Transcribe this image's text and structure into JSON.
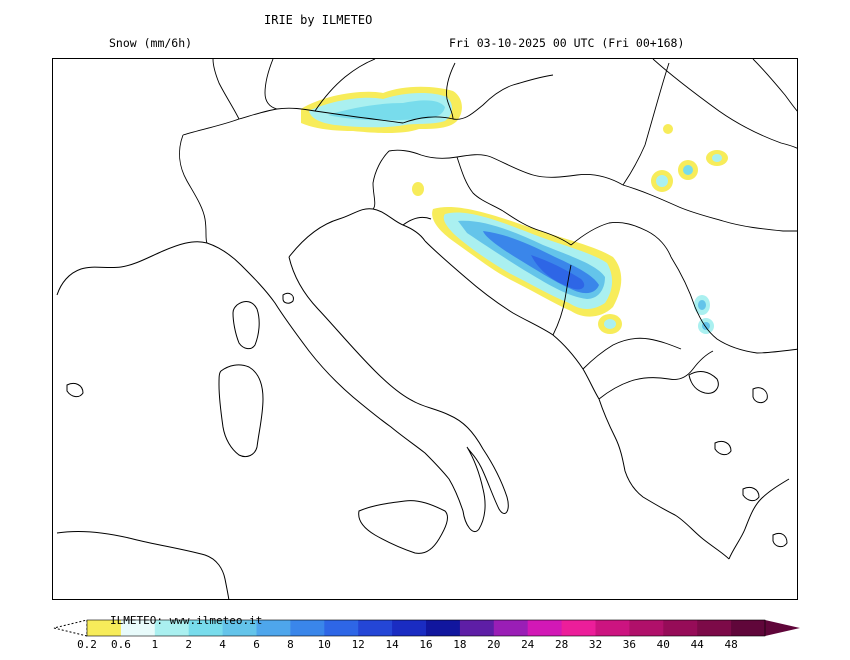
{
  "header": {
    "title": "IRIE by ILMETEO",
    "variable": "Snow (mm/6h)",
    "valid_time": "Fri 03-10-2025 00 UTC (Fri 00+168)"
  },
  "legend": {
    "credit": "ILMETEO: www.ilmeteo.it",
    "levels": [
      "0.2",
      "0.6",
      "1",
      "2",
      "4",
      "6",
      "8",
      "10",
      "12",
      "14",
      "16",
      "18",
      "20",
      "24",
      "28",
      "32",
      "36",
      "40",
      "44",
      "48"
    ],
    "colors": [
      "#f7ec5a",
      "#e8fbfb",
      "#aaf0f0",
      "#78dcec",
      "#64c4ea",
      "#4ea6ec",
      "#3a86ea",
      "#2e66e6",
      "#2446d6",
      "#1a2cc2",
      "#11169e",
      "#5e1ea6",
      "#9a1eb6",
      "#d218b6",
      "#ec1e9a",
      "#cc1480",
      "#b0106a",
      "#960c58",
      "#7c0a48",
      "#60063a"
    ],
    "low_arrow_color": "#ffffff",
    "high_arrow_color": "#60063a"
  }
}
